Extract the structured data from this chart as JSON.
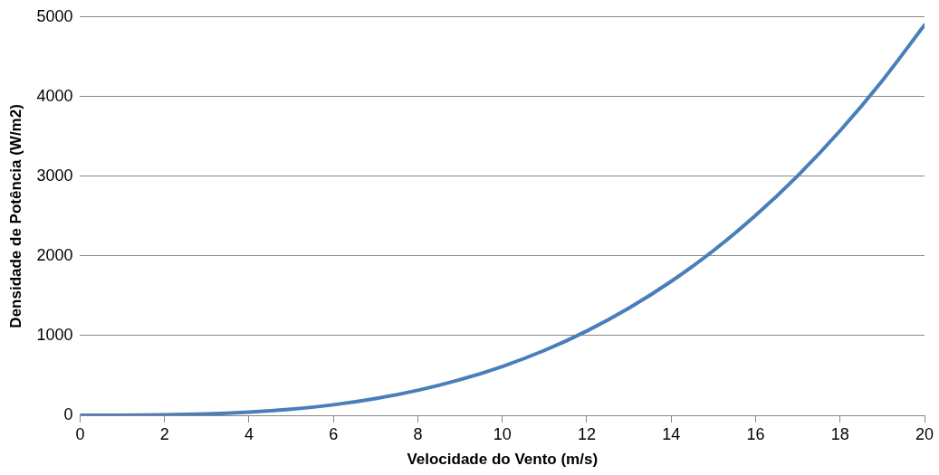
{
  "chart_data": {
    "type": "line",
    "xlabel": "Velocidade do Vento (m/s)",
    "ylabel": "Densidade de Potência (W/m2)",
    "x": [
      0,
      1,
      2,
      3,
      4,
      5,
      6,
      7,
      8,
      9,
      10,
      11,
      12,
      13,
      14,
      15,
      16,
      17,
      18,
      19,
      20
    ],
    "values": [
      0,
      1,
      5,
      17,
      39,
      77,
      132,
      210,
      314,
      447,
      613,
      815,
      1058,
      1346,
      1681,
      2067,
      2509,
      3009,
      3572,
      4201,
      4900
    ],
    "color": "#4a7ebb",
    "marker": "none",
    "xlim": [
      0,
      20
    ],
    "xticks": [
      0,
      2,
      4,
      6,
      8,
      10,
      12,
      14,
      16,
      18,
      20
    ],
    "ylim": [
      0,
      5000
    ],
    "yticks": [
      0,
      1000,
      2000,
      3000,
      4000,
      5000
    ],
    "grid": "y",
    "legend": false
  }
}
